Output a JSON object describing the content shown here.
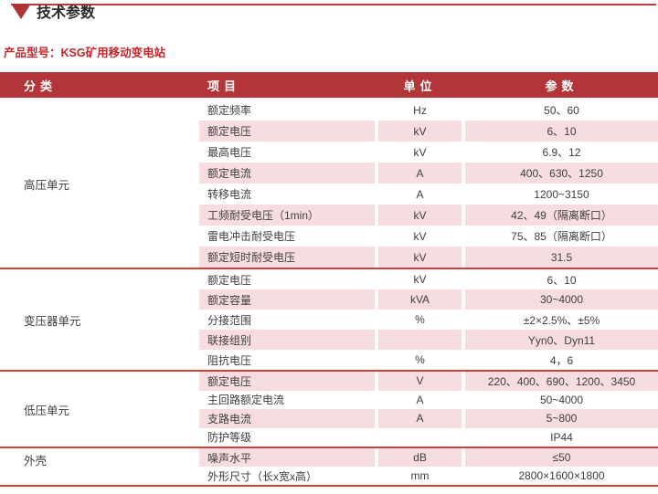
{
  "page": {
    "title": "技术参数",
    "subtitle": "产品型号：KSG矿用移动变电站"
  },
  "table": {
    "headers": {
      "category": "分类",
      "item": "项目",
      "unit": "单位",
      "param": "参数"
    },
    "sections": [
      {
        "category": "高压单元",
        "rows": [
          {
            "item": "额定频率",
            "unit": "Hz",
            "param": "50、60"
          },
          {
            "item": "额定电压",
            "unit": "kV",
            "param": "6、10"
          },
          {
            "item": "最高电压",
            "unit": "kV",
            "param": "6.9、12"
          },
          {
            "item": "额定电流",
            "unit": "A",
            "param": "400、630、1250"
          },
          {
            "item": "转移电流",
            "unit": "A",
            "param": "1200~3150"
          },
          {
            "item": "工频耐受电压（1min）",
            "unit": "kV",
            "param": "42、49（隔离断口）"
          },
          {
            "item": "雷电冲击耐受电压",
            "unit": "kV",
            "param": "75、85（隔离断口）"
          },
          {
            "item": "额定短时耐受电压",
            "unit": "kV",
            "param": "31.5"
          }
        ]
      },
      {
        "category": "变压器单元",
        "rows": [
          {
            "item": "额定电压",
            "unit": "kV",
            "param": "6、10"
          },
          {
            "item": "额定容量",
            "unit": "kVA",
            "param": "30~4000"
          },
          {
            "item": "分接范围",
            "unit": "%",
            "param": "±2×2.5%、±5%"
          },
          {
            "item": "联接组别",
            "unit": "",
            "param": "Yyn0、Dyn11"
          },
          {
            "item": "阻抗电压",
            "unit": "%",
            "param": "4，6"
          }
        ]
      },
      {
        "category": "低压单元",
        "rows": [
          {
            "item": "额定电压",
            "unit": "V",
            "param": "220、400、690、1200、3450"
          },
          {
            "item": "主回路额定电流",
            "unit": "A",
            "param": "50~4000"
          },
          {
            "item": "支路电流",
            "unit": "A",
            "param": "5~800"
          },
          {
            "item": "防护等级",
            "unit": "",
            "param": "IP44"
          }
        ]
      },
      {
        "category": "外壳",
        "rows": [
          {
            "item": "噪声水平",
            "unit": "dB",
            "param": "≤50"
          },
          {
            "item": "外形尺寸（长x宽x高）",
            "unit": "mm",
            "param": "2800×1600×1800"
          }
        ]
      }
    ]
  },
  "colors": {
    "header_bg": "#b23639",
    "pink": "#f8dde0",
    "sep_red": "#cd4236",
    "rule_red": "#bf3a3e",
    "triangle_red": "#b03237",
    "subtitle_red": "#c9242b",
    "title_text": "#2a2a2a",
    "text": "#3e3e3e"
  }
}
